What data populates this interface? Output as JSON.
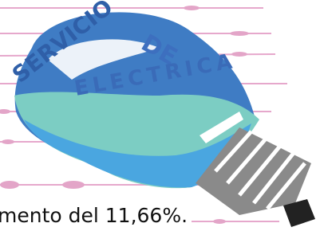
{
  "logo": {
    "words": [
      "SERVICIO",
      "DE",
      "ELECTRICA"
    ]
  },
  "caption": "mento del 11,66%."
}
